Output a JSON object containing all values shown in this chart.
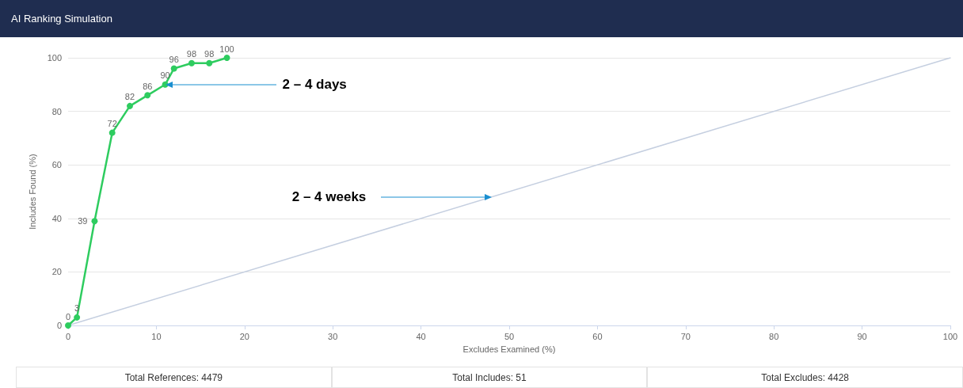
{
  "chart_data": {
    "type": "line",
    "title": "AI Ranking Simulation",
    "xlabel": "Excludes Examined (%)",
    "ylabel": "Includes Found (%)",
    "series": [
      {
        "color": "#2ecc5f",
        "x": [
          0,
          1,
          3,
          5,
          7,
          9,
          11,
          12,
          14,
          16,
          18
        ],
        "values": [
          0,
          3,
          39,
          72,
          82,
          86,
          90,
          96,
          98,
          98,
          100
        ],
        "value_labels": [
          "0",
          "3",
          "39",
          "72",
          "82",
          "86",
          "90",
          "96",
          "98",
          "98",
          "100"
        ]
      },
      {
        "color": "#c5cfe0",
        "x": [
          0,
          100
        ],
        "values": [
          0,
          100
        ],
        "marker": "none"
      }
    ],
    "xlim": [
      0,
      100
    ],
    "xticks": [
      0,
      10,
      20,
      30,
      40,
      50,
      60,
      70,
      80,
      90,
      100
    ],
    "ylim": [
      0,
      100
    ],
    "yticks": [
      0,
      20,
      40,
      60,
      80,
      100
    ],
    "grid": "y",
    "marker": "circle",
    "annotations": [
      {
        "text": "2 – 4 days",
        "x": 11,
        "y": 90
      },
      {
        "text": "2 – 4 weeks",
        "x": 48,
        "y": 48
      },
      "Total References: 4479",
      "Total Includes: 51",
      "Total Excludes: 4428"
    ]
  }
}
